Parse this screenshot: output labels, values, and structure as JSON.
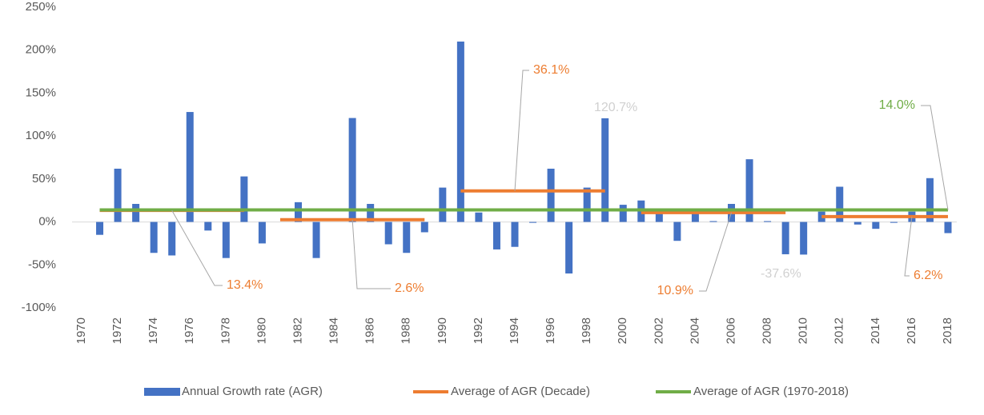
{
  "chart_data": {
    "type": "bar",
    "categories": [
      "1970",
      null,
      "1972",
      null,
      "1974",
      null,
      "1976",
      null,
      "1978",
      null,
      "1980",
      null,
      "1982",
      null,
      "1984",
      null,
      "1986",
      null,
      "1988",
      null,
      "1990",
      null,
      "1992",
      null,
      "1994",
      null,
      "1996",
      null,
      "1998",
      null,
      "2000",
      null,
      "2002",
      null,
      "2004",
      null,
      "2006",
      null,
      "2008",
      null,
      "2010",
      null,
      "2012",
      null,
      "2014",
      null,
      "2016",
      null,
      "2018"
    ],
    "series": [
      {
        "name": "Annual Growth rate (AGR)",
        "type": "bar",
        "color": "#4472c4",
        "label_color": "#d0d0d0",
        "values": [
          0,
          -15,
          62,
          21,
          -36,
          -39,
          128,
          -10,
          -42,
          53,
          -25,
          0,
          23,
          -42,
          0,
          121,
          21,
          -26,
          -36,
          -12,
          40,
          210,
          11,
          -32,
          -29,
          -1,
          62,
          -60,
          40,
          120.7,
          20,
          25,
          10,
          -22,
          10,
          1,
          21,
          73,
          1,
          -37.6,
          -38,
          12,
          41,
          -3,
          -8,
          -1,
          12,
          51,
          -13
        ],
        "value_labels": [
          null,
          null,
          null,
          null,
          null,
          null,
          null,
          null,
          null,
          null,
          null,
          null,
          null,
          null,
          null,
          null,
          null,
          null,
          null,
          null,
          null,
          null,
          null,
          null,
          null,
          null,
          null,
          null,
          null,
          "120.7%",
          null,
          null,
          null,
          null,
          null,
          null,
          null,
          null,
          null,
          "-37.6%",
          null,
          null,
          null,
          null,
          null,
          null,
          null,
          null,
          null
        ]
      },
      {
        "name": "Average of AGR (Decade)",
        "type": "line",
        "color": "#ed7d31",
        "values": [
          null,
          13.4,
          13.4,
          13.4,
          13.4,
          13.4,
          13.4,
          13.4,
          13.4,
          13.4,
          null,
          2.6,
          2.6,
          2.6,
          2.6,
          2.6,
          2.6,
          2.6,
          2.6,
          2.6,
          null,
          36.1,
          36.1,
          36.1,
          36.1,
          36.1,
          36.1,
          36.1,
          36.1,
          36.1,
          null,
          10.9,
          10.9,
          10.9,
          10.9,
          10.9,
          10.9,
          10.9,
          10.9,
          10.9,
          null,
          6.2,
          6.2,
          6.2,
          6.2,
          6.2,
          6.2,
          6.2,
          6.2
        ],
        "value_labels": [
          null,
          null,
          null,
          null,
          null,
          "13.4%",
          null,
          null,
          null,
          null,
          null,
          null,
          null,
          null,
          null,
          "2.6%",
          null,
          null,
          null,
          null,
          null,
          null,
          null,
          null,
          "36.1%",
          null,
          null,
          null,
          null,
          null,
          null,
          null,
          null,
          null,
          null,
          null,
          "10.9%",
          null,
          null,
          null,
          null,
          null,
          null,
          null,
          null,
          null,
          "6.2%",
          null,
          null
        ]
      },
      {
        "name": "Average of AGR (1970-2018)",
        "type": "line",
        "color": "#70ad47",
        "values": [
          null,
          14.0,
          14.0,
          14.0,
          14.0,
          14.0,
          14.0,
          14.0,
          14.0,
          14.0,
          14.0,
          14.0,
          14.0,
          14.0,
          14.0,
          14.0,
          14.0,
          14.0,
          14.0,
          14.0,
          14.0,
          14.0,
          14.0,
          14.0,
          14.0,
          14.0,
          14.0,
          14.0,
          14.0,
          14.0,
          14.0,
          14.0,
          14.0,
          14.0,
          14.0,
          14.0,
          14.0,
          14.0,
          14.0,
          14.0,
          14.0,
          14.0,
          14.0,
          14.0,
          14.0,
          14.0,
          14.0,
          14.0,
          14.0
        ],
        "value_labels": [
          null,
          null,
          null,
          null,
          null,
          null,
          null,
          null,
          null,
          null,
          null,
          null,
          null,
          null,
          null,
          null,
          null,
          null,
          null,
          null,
          null,
          null,
          null,
          null,
          null,
          null,
          null,
          null,
          null,
          null,
          null,
          null,
          null,
          null,
          null,
          null,
          null,
          null,
          null,
          null,
          null,
          null,
          null,
          null,
          null,
          null,
          null,
          null,
          "14.0%"
        ]
      }
    ],
    "ylim": [
      -100,
      250
    ],
    "yticks": [
      {
        "value": -100,
        "label": "-100%"
      },
      {
        "value": -50,
        "label": "-50%"
      },
      {
        "value": 0,
        "label": "0%"
      },
      {
        "value": 50,
        "label": "50%"
      },
      {
        "value": 100,
        "label": "100%"
      },
      {
        "value": 150,
        "label": "150%"
      },
      {
        "value": 200,
        "label": "200%"
      },
      {
        "value": 250,
        "label": "250%"
      }
    ],
    "grid": false,
    "legend": "bottom"
  }
}
